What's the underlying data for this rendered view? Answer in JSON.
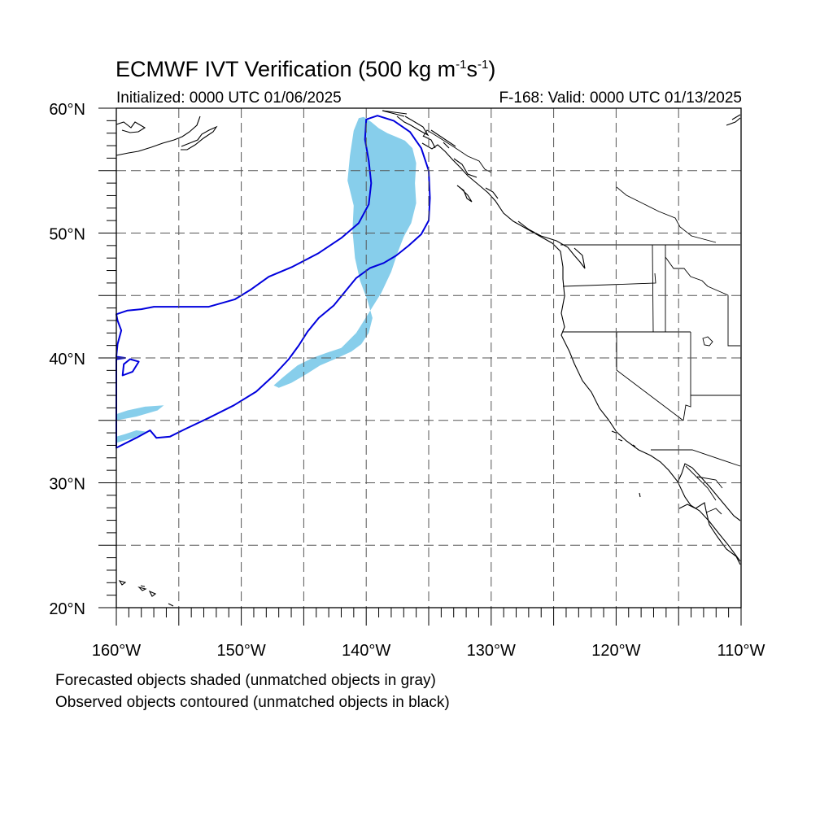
{
  "figure": {
    "title_main": "ECMWF IVT Verification (500 kg m",
    "title_exp1": "-1",
    "title_mid": "s",
    "title_exp2": "-1",
    "title_close": ")",
    "initialized": "Initialized: 0000 UTC 01/06/2025",
    "valid": "F-168: Valid: 0000 UTC 01/13/2025",
    "notes": [
      "Forecasted objects shaded (unmatched objects in gray)",
      "Observed objects contoured (unmatched objects in black)"
    ]
  },
  "map": {
    "lon_range": [
      -160,
      -110
    ],
    "lat_range": [
      20,
      60
    ],
    "lon_tick_labels": [
      "160°W",
      "150°W",
      "140°W",
      "130°W",
      "120°W",
      "110°W"
    ],
    "lat_tick_labels": [
      "20°N",
      "30°N",
      "40°N",
      "50°N",
      "60°N"
    ],
    "gridlines": "dashed every 5°",
    "colors": {
      "forecast_object_fill": "#87ceeb",
      "observed_object_contour": "#0000dd",
      "coastline": "#000000",
      "gridline": "#555555"
    },
    "forecast_objects": [
      {
        "matched": true,
        "points": [
          [
            -140.2,
            59.3
          ],
          [
            -139.6,
            58.9
          ],
          [
            -139.0,
            58.4
          ],
          [
            -138.3,
            58.0
          ],
          [
            -137.6,
            57.7
          ],
          [
            -136.9,
            57.4
          ],
          [
            -136.3,
            56.8
          ],
          [
            -136.0,
            55.6
          ],
          [
            -136.1,
            54.0
          ],
          [
            -136.0,
            52.4
          ],
          [
            -136.4,
            50.8
          ],
          [
            -137.0,
            49.7
          ],
          [
            -137.5,
            48.4
          ],
          [
            -138.0,
            46.9
          ],
          [
            -138.8,
            45.2
          ],
          [
            -139.8,
            43.6
          ],
          [
            -140.8,
            42.0
          ],
          [
            -142.0,
            40.8
          ],
          [
            -143.2,
            40.4
          ],
          [
            -144.3,
            40.0
          ],
          [
            -145.5,
            39.4
          ],
          [
            -146.6,
            38.5
          ],
          [
            -147.4,
            37.8
          ],
          [
            -147.0,
            37.6
          ],
          [
            -146.0,
            38.0
          ],
          [
            -144.8,
            38.7
          ],
          [
            -143.7,
            39.4
          ],
          [
            -142.3,
            40.0
          ],
          [
            -141.2,
            40.5
          ],
          [
            -140.4,
            41.1
          ],
          [
            -139.8,
            42.0
          ],
          [
            -139.5,
            43.2
          ],
          [
            -139.9,
            44.6
          ],
          [
            -140.5,
            46.2
          ],
          [
            -140.9,
            48.0
          ],
          [
            -141.1,
            50.2
          ],
          [
            -141.0,
            52.2
          ],
          [
            -141.5,
            54.2
          ],
          [
            -141.3,
            56.2
          ],
          [
            -141.0,
            58.2
          ],
          [
            -140.6,
            59.2
          ]
        ]
      },
      {
        "matched": true,
        "points": [
          [
            -160.0,
            35.0
          ],
          [
            -158.4,
            35.3
          ],
          [
            -156.7,
            35.8
          ],
          [
            -156.2,
            36.2
          ],
          [
            -157.7,
            36.1
          ],
          [
            -159.1,
            35.8
          ],
          [
            -160.0,
            35.5
          ]
        ]
      },
      {
        "matched": true,
        "points": [
          [
            -160.0,
            33.2
          ],
          [
            -158.6,
            33.6
          ],
          [
            -157.6,
            34.1
          ],
          [
            -158.4,
            34.2
          ],
          [
            -159.3,
            33.9
          ],
          [
            -160.0,
            33.7
          ]
        ]
      }
    ],
    "observed_objects": [
      {
        "matched": true,
        "points": [
          [
            -160.0,
            32.8
          ],
          [
            -158.4,
            33.6
          ],
          [
            -157.3,
            34.2
          ],
          [
            -156.8,
            33.6
          ],
          [
            -155.7,
            33.7
          ],
          [
            -154.5,
            34.3
          ],
          [
            -152.6,
            35.2
          ],
          [
            -150.6,
            36.2
          ],
          [
            -148.8,
            37.3
          ],
          [
            -147.4,
            38.6
          ],
          [
            -146.2,
            39.9
          ],
          [
            -145.4,
            41.0
          ],
          [
            -144.7,
            42.1
          ],
          [
            -143.8,
            43.2
          ],
          [
            -142.6,
            44.2
          ],
          [
            -141.7,
            45.3
          ],
          [
            -140.8,
            46.4
          ],
          [
            -139.7,
            47.2
          ],
          [
            -138.6,
            47.6
          ],
          [
            -137.6,
            48.2
          ],
          [
            -136.6,
            49.0
          ],
          [
            -135.6,
            49.9
          ],
          [
            -135.0,
            51.0
          ],
          [
            -134.9,
            52.8
          ],
          [
            -135.0,
            55.0
          ],
          [
            -135.6,
            56.8
          ],
          [
            -136.5,
            58.1
          ],
          [
            -137.8,
            59.0
          ],
          [
            -139.1,
            59.4
          ],
          [
            -140.0,
            59.1
          ],
          [
            -140.1,
            57.5
          ],
          [
            -139.8,
            55.8
          ],
          [
            -139.6,
            54.0
          ],
          [
            -139.8,
            52.3
          ],
          [
            -140.6,
            50.8
          ],
          [
            -142.0,
            49.6
          ],
          [
            -143.8,
            48.4
          ],
          [
            -145.9,
            47.3
          ],
          [
            -147.8,
            46.5
          ],
          [
            -149.2,
            45.5
          ],
          [
            -150.5,
            44.7
          ],
          [
            -152.6,
            44.1
          ],
          [
            -155.2,
            44.1
          ],
          [
            -157.0,
            44.1
          ],
          [
            -158.0,
            43.9
          ],
          [
            -159.1,
            43.8
          ],
          [
            -160.0,
            43.5
          ],
          [
            -159.9,
            43.0
          ],
          [
            -159.6,
            42.2
          ],
          [
            -159.9,
            41.1
          ],
          [
            -160.0,
            40.1
          ],
          [
            -159.3,
            40.0
          ],
          [
            -160.0,
            39.9
          ],
          [
            -160.0,
            37.5
          ],
          [
            -160.0,
            32.8
          ]
        ]
      },
      {
        "matched": true,
        "points": [
          [
            -159.5,
            38.6
          ],
          [
            -158.7,
            38.9
          ],
          [
            -158.2,
            39.7
          ],
          [
            -158.9,
            39.9
          ],
          [
            -159.4,
            39.5
          ],
          [
            -159.5,
            38.6
          ]
        ]
      }
    ]
  }
}
